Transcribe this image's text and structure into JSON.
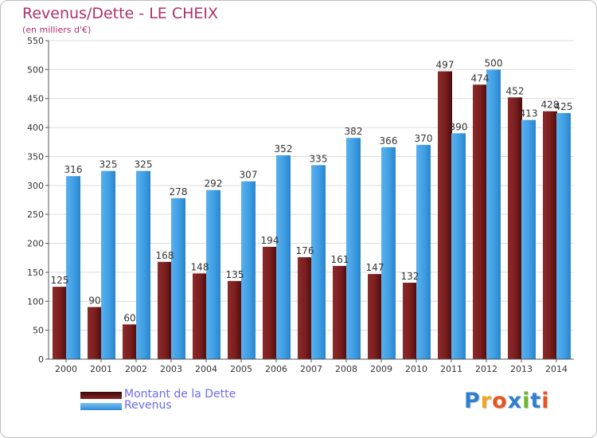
{
  "chart_data": {
    "type": "bar",
    "title": "Revenus/Dette - LE CHEIX",
    "subtitle": "(en milliers d'€)",
    "categories": [
      "2000",
      "2001",
      "2002",
      "2003",
      "2004",
      "2005",
      "2006",
      "2007",
      "2008",
      "2009",
      "2010",
      "2011",
      "2012",
      "2013",
      "2014"
    ],
    "series": [
      {
        "name": "Montant de la Dette",
        "values": [
          125,
          90,
          60,
          168,
          148,
          135,
          194,
          176,
          161,
          147,
          132,
          497,
          474,
          452,
          428
        ],
        "color": "#7b1c1c"
      },
      {
        "name": "Revenus",
        "values": [
          316,
          325,
          325,
          278,
          292,
          307,
          352,
          335,
          382,
          366,
          370,
          390,
          500,
          413,
          425
        ],
        "color": "#3f9ee3"
      }
    ],
    "ylim": [
      0,
      550
    ],
    "yticks": [
      0,
      50,
      100,
      150,
      200,
      250,
      300,
      350,
      400,
      450,
      500,
      550
    ],
    "grid": true,
    "legend_position": "bottom-left"
  },
  "legend": {
    "debt_label": "Montant de la Dette",
    "revenue_label": "Revenus"
  },
  "logo": {
    "text": "Proxiti",
    "letters": [
      "P",
      "r",
      "o",
      "x",
      "i",
      "t",
      "i"
    ],
    "colors": [
      "#2f7fd1",
      "#f2a51b",
      "#e8541e",
      "#2f7fd1",
      "#71b62f",
      "#2f7fd1",
      "#e8541e"
    ]
  }
}
